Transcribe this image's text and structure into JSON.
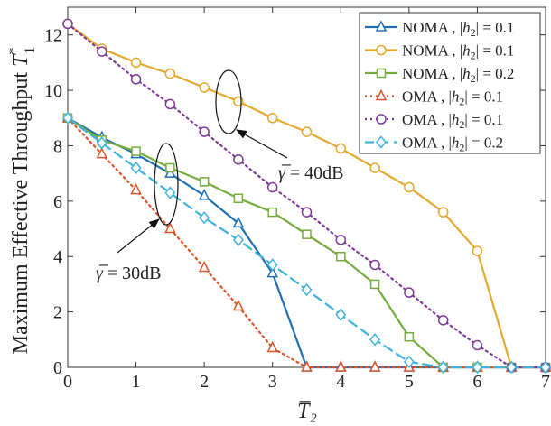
{
  "chart_data": {
    "type": "line",
    "xlabel": "T̅₂",
    "ylabel_main": "Maximum Effective Throughput ",
    "ylabel_sym": "T",
    "ylabel_sup": "*",
    "ylabel_sub": "1",
    "xlim": [
      0,
      7
    ],
    "ylim": [
      0,
      13
    ],
    "xticks": [
      0,
      1,
      2,
      3,
      4,
      5,
      6,
      7
    ],
    "yticks": [
      0,
      2,
      4,
      6,
      8,
      10,
      12
    ],
    "grid": false,
    "legend_position": "top-right",
    "x": [
      0,
      0.5,
      1,
      1.5,
      2,
      2.5,
      3,
      3.5,
      4,
      4.5,
      5,
      5.5,
      6,
      6.5,
      7
    ],
    "series": [
      {
        "name": "NOMA, |h2| = 0.1",
        "color": "#1f6fb5",
        "marker": "triangle",
        "dash": "solid",
        "values": [
          9.0,
          8.3,
          7.7,
          7.0,
          6.2,
          5.2,
          3.4,
          0,
          0,
          0,
          0,
          0,
          0,
          0,
          0
        ]
      },
      {
        "name": "NOMA, |h2| = 0.1",
        "color": "#e5a82e",
        "marker": "circle",
        "dash": "solid",
        "values": [
          12.4,
          11.5,
          11.0,
          10.6,
          10.1,
          9.6,
          9.0,
          8.5,
          7.9,
          7.2,
          6.5,
          5.6,
          4.2,
          0,
          0
        ]
      },
      {
        "name": "NOMA, |h2| = 0.2",
        "color": "#76ab3e",
        "marker": "square",
        "dash": "solid",
        "values": [
          9.0,
          8.2,
          7.8,
          7.2,
          6.7,
          6.1,
          5.6,
          4.8,
          4.0,
          3.0,
          1.1,
          0,
          0,
          0,
          0
        ]
      },
      {
        "name": "OMA, |h2| = 0.1",
        "color": "#d9552b",
        "marker": "triangle",
        "dash": "dotted",
        "values": [
          9.0,
          7.7,
          6.4,
          5.0,
          3.6,
          2.2,
          0.7,
          0,
          0,
          0,
          0,
          0,
          0,
          0,
          0
        ]
      },
      {
        "name": "OMA, |h2| = 0.1",
        "color": "#7e3a98",
        "marker": "circle",
        "dash": "dotted",
        "values": [
          12.4,
          11.4,
          10.4,
          9.5,
          8.5,
          7.5,
          6.5,
          5.6,
          4.6,
          3.7,
          2.7,
          1.7,
          0.8,
          0,
          0
        ]
      },
      {
        "name": "OMA, |h2| = 0.2",
        "color": "#3fb2de",
        "marker": "diamond",
        "dash": "dashed",
        "values": [
          9.0,
          8.1,
          7.2,
          6.3,
          5.4,
          4.6,
          3.7,
          2.8,
          1.9,
          1.0,
          0.2,
          0,
          0,
          0,
          0
        ]
      }
    ],
    "legend_entries": [
      {
        "scheme": "NOMA",
        "h": "0.1"
      },
      {
        "scheme": "NOMA",
        "h": "0.1"
      },
      {
        "scheme": "NOMA",
        "h": "0.2"
      },
      {
        "scheme": "OMA",
        "h": "0.1"
      },
      {
        "scheme": "OMA",
        "h": "0.1"
      },
      {
        "scheme": "OMA",
        "h": "0.2"
      }
    ],
    "annotations": [
      {
        "symbol": "γ̅",
        "text": " = 40dB"
      },
      {
        "symbol": "γ̅",
        "text": " = 30dB"
      }
    ]
  }
}
